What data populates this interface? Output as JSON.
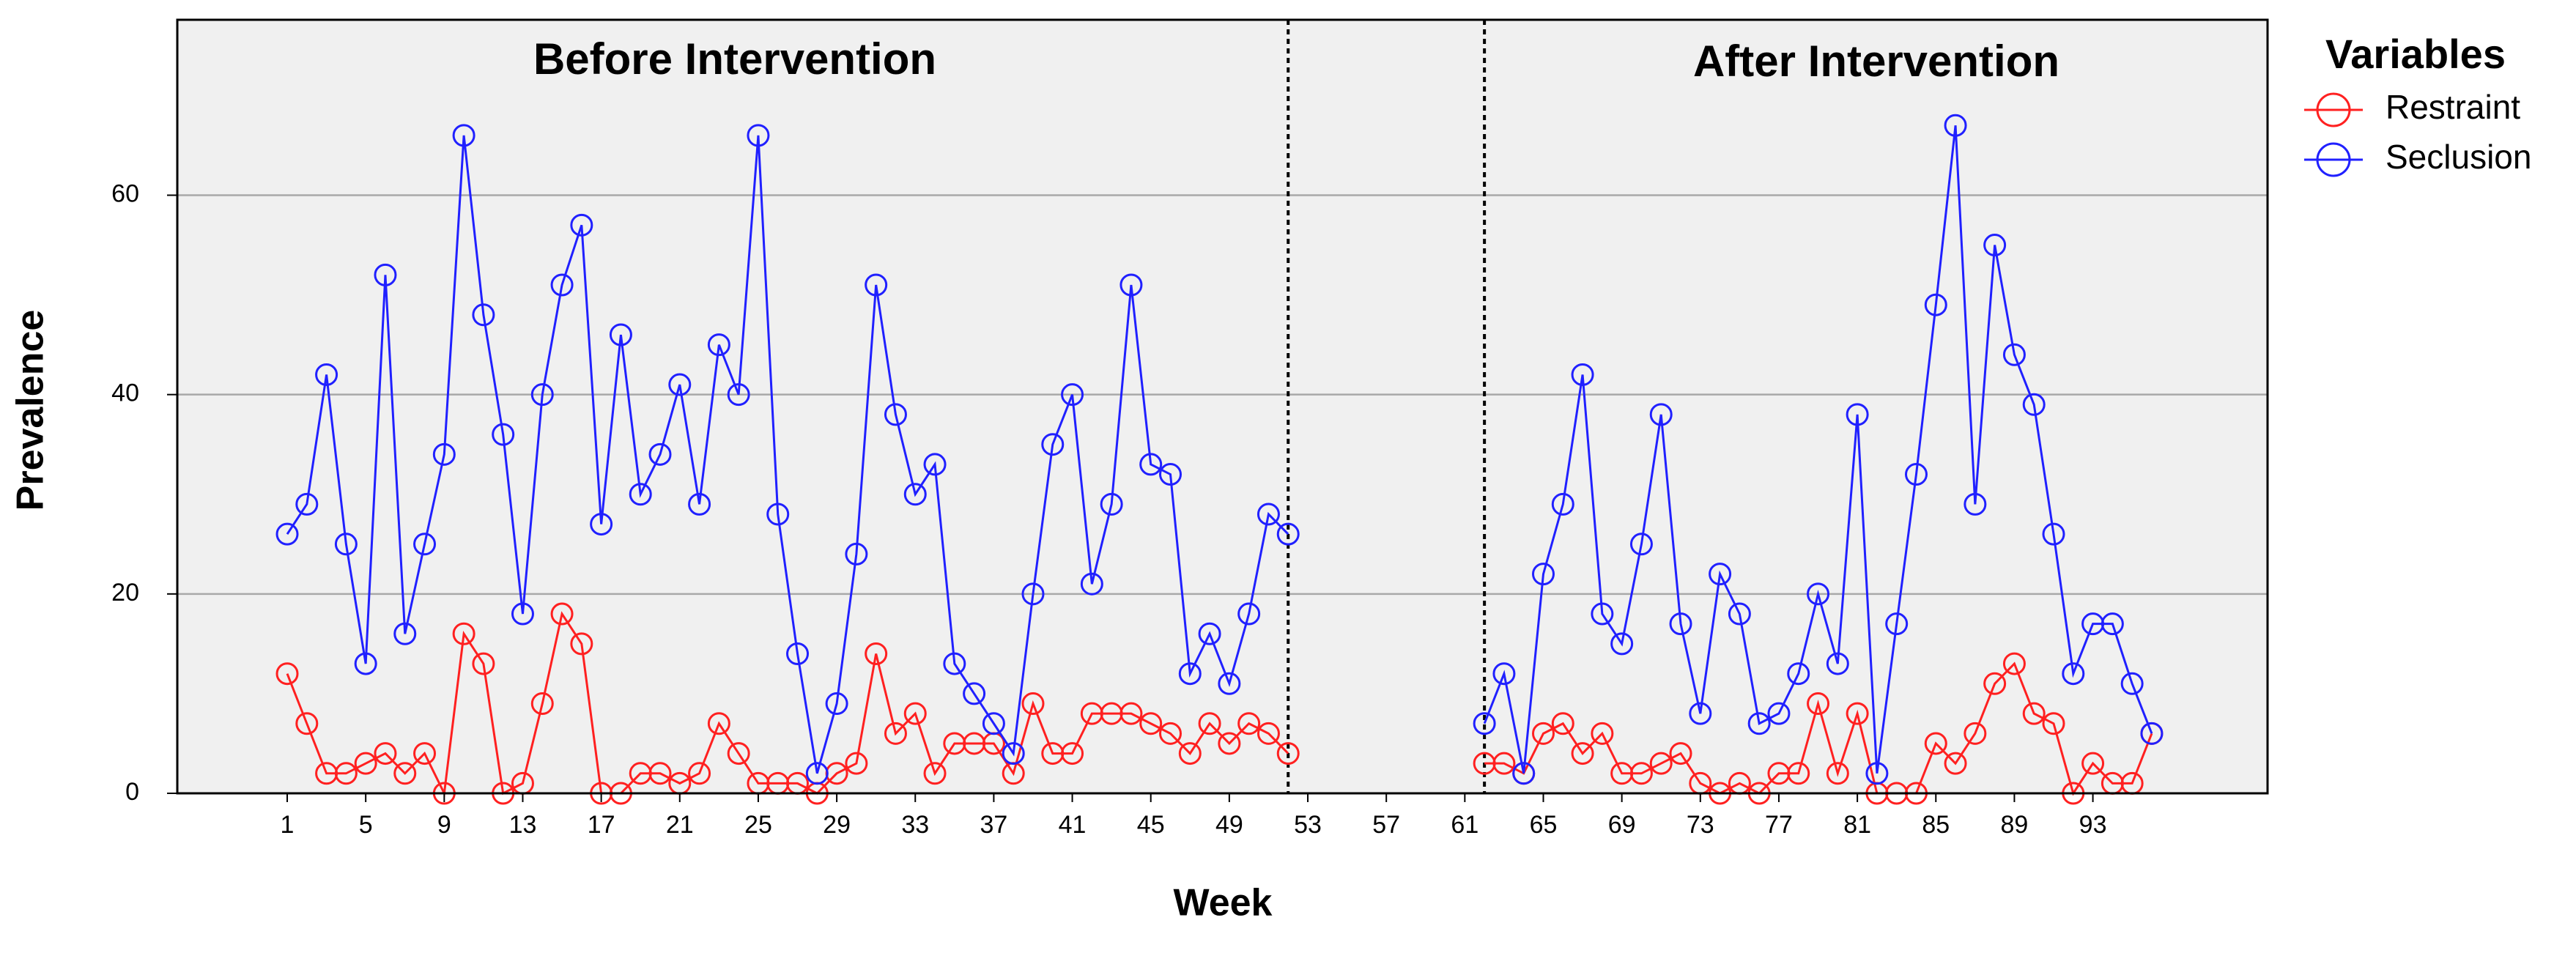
{
  "chart_data": {
    "type": "line",
    "x_label": "Week",
    "y_label": "Prevalence",
    "annotations": [
      "Before Intervention",
      "After Intervention"
    ],
    "reference_lines": [
      52,
      62
    ],
    "legend_title": "Variables",
    "legend_position": "right",
    "x": [
      1,
      2,
      3,
      4,
      5,
      6,
      7,
      8,
      9,
      10,
      11,
      12,
      13,
      14,
      15,
      16,
      17,
      18,
      19,
      20,
      21,
      22,
      23,
      24,
      25,
      26,
      27,
      28,
      29,
      30,
      31,
      32,
      33,
      34,
      35,
      36,
      37,
      38,
      39,
      40,
      41,
      42,
      43,
      44,
      45,
      46,
      47,
      48,
      49,
      50,
      51,
      52,
      53,
      54,
      55,
      56,
      57,
      58,
      59,
      60,
      61,
      62,
      63,
      64,
      65,
      66,
      67,
      68,
      69,
      70,
      71,
      72,
      73,
      74,
      75,
      76,
      77,
      78,
      79,
      80,
      81,
      82,
      83,
      84,
      85,
      86,
      87,
      88,
      89,
      90,
      91,
      92,
      93,
      94,
      95,
      96
    ],
    "series": [
      {
        "name": "Restraint",
        "color": "#ff2020",
        "values": [
          12,
          7,
          2,
          2,
          3,
          4,
          2,
          4,
          0,
          16,
          13,
          0,
          1,
          9,
          18,
          15,
          0,
          0,
          2,
          2,
          1,
          2,
          7,
          4,
          1,
          1,
          1,
          0,
          2,
          3,
          14,
          6,
          8,
          2,
          5,
          5,
          5,
          2,
          9,
          4,
          4,
          8,
          8,
          8,
          7,
          6,
          4,
          7,
          5,
          7,
          6,
          4,
          null,
          null,
          null,
          null,
          null,
          null,
          null,
          null,
          null,
          3,
          3,
          2,
          6,
          7,
          4,
          6,
          2,
          2,
          3,
          4,
          1,
          0,
          1,
          0,
          2,
          2,
          9,
          2,
          8,
          0,
          0,
          0,
          5,
          3,
          6,
          11,
          13,
          8,
          7,
          0,
          3,
          1,
          1,
          6
        ]
      },
      {
        "name": "Seclusion",
        "color": "#2020ff",
        "values": [
          26,
          29,
          42,
          25,
          13,
          52,
          16,
          25,
          34,
          66,
          48,
          36,
          18,
          40,
          51,
          57,
          27,
          46,
          30,
          34,
          41,
          29,
          45,
          40,
          66,
          28,
          14,
          2,
          9,
          24,
          51,
          38,
          30,
          33,
          13,
          10,
          7,
          4,
          20,
          35,
          40,
          21,
          29,
          51,
          33,
          32,
          12,
          16,
          11,
          18,
          28,
          26,
          null,
          null,
          null,
          null,
          null,
          null,
          null,
          null,
          null,
          7,
          12,
          2,
          22,
          29,
          42,
          18,
          15,
          25,
          38,
          17,
          8,
          22,
          18,
          7,
          8,
          12,
          20,
          13,
          38,
          2,
          17,
          32,
          49,
          67,
          29,
          55,
          44,
          39,
          26,
          12,
          17,
          17,
          11,
          6
        ]
      }
    ],
    "xlim": [
      -4.6,
      101.9
    ],
    "ylim": [
      0,
      77.6
    ],
    "xticks": [
      1,
      5,
      9,
      13,
      17,
      21,
      25,
      29,
      33,
      37,
      41,
      45,
      49,
      53,
      57,
      61,
      65,
      69,
      73,
      77,
      81,
      85,
      89,
      93
    ],
    "yticks": [
      0,
      20,
      40,
      60
    ],
    "grid": true
  }
}
